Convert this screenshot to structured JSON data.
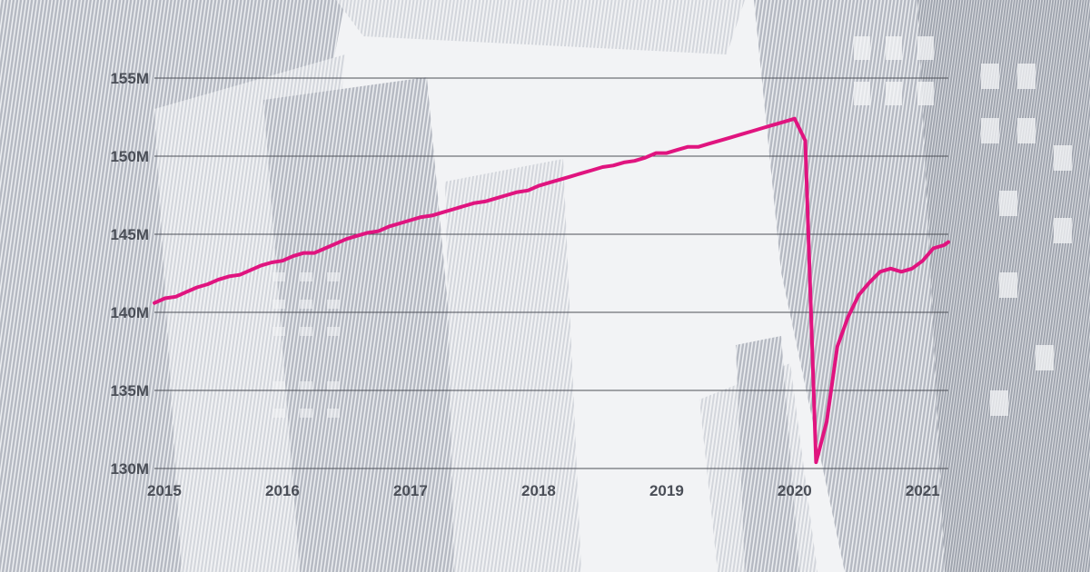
{
  "chart_data": {
    "type": "line",
    "title": "",
    "xlabel": "",
    "ylabel": "",
    "x_ticks": [
      "2015",
      "2016",
      "2017",
      "2018",
      "2019",
      "2020",
      "2021"
    ],
    "y_ticks": [
      "130M",
      "135M",
      "140M",
      "145M",
      "150M",
      "155M"
    ],
    "y_tick_values": [
      130,
      135,
      140,
      145,
      150,
      155
    ],
    "xlim": [
      2015,
      2021.2
    ],
    "ylim": [
      130,
      155
    ],
    "grid": true,
    "legend": "none",
    "line_color": "#e0147f",
    "series": [
      {
        "x": [
          2015.0,
          2015.083,
          2015.167,
          2015.25,
          2015.333,
          2015.417,
          2015.5,
          2015.583,
          2015.667,
          2015.75,
          2015.833,
          2015.917,
          2016.0,
          2016.083,
          2016.167,
          2016.25,
          2016.333,
          2016.417,
          2016.5,
          2016.583,
          2016.667,
          2016.75,
          2016.833,
          2016.917,
          2017.0,
          2017.083,
          2017.167,
          2017.25,
          2017.333,
          2017.417,
          2017.5,
          2017.583,
          2017.667,
          2017.75,
          2017.833,
          2017.917,
          2018.0,
          2018.083,
          2018.167,
          2018.25,
          2018.333,
          2018.417,
          2018.5,
          2018.583,
          2018.667,
          2018.75,
          2018.833,
          2018.917,
          2019.0,
          2019.083,
          2019.167,
          2019.25,
          2019.333,
          2019.417,
          2019.5,
          2019.583,
          2019.667,
          2019.75,
          2019.833,
          2019.917,
          2020.0,
          2020.083,
          2020.167,
          2020.25,
          2020.333,
          2020.417,
          2020.5,
          2020.583,
          2020.667,
          2020.75,
          2020.833,
          2020.917,
          2021.0,
          2021.083,
          2021.167,
          2021.2
        ],
        "values": [
          140.6,
          140.9,
          141.0,
          141.3,
          141.6,
          141.8,
          142.1,
          142.3,
          142.4,
          142.7,
          143.0,
          143.2,
          143.3,
          143.6,
          143.8,
          143.8,
          144.1,
          144.4,
          144.7,
          144.9,
          145.1,
          145.2,
          145.5,
          145.7,
          145.9,
          146.1,
          146.2,
          146.4,
          146.6,
          146.8,
          147.0,
          147.1,
          147.3,
          147.5,
          147.7,
          147.8,
          148.1,
          148.3,
          148.5,
          148.7,
          148.9,
          149.1,
          149.3,
          149.4,
          149.6,
          149.7,
          149.9,
          150.2,
          150.2,
          150.4,
          150.6,
          150.6,
          150.8,
          151.0,
          151.2,
          151.4,
          151.6,
          151.8,
          152.0,
          152.2,
          152.4,
          151.0,
          130.4,
          133.0,
          137.8,
          139.7,
          141.1,
          141.9,
          142.6,
          142.8,
          142.6,
          142.8,
          143.3,
          144.1,
          144.3,
          144.5
        ]
      }
    ]
  }
}
